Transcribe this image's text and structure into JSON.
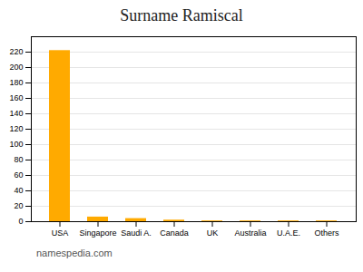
{
  "chart_data": {
    "type": "bar",
    "title": "Surname Ramiscal",
    "categories": [
      "USA",
      "Singapore",
      "Saudi A.",
      "Canada",
      "UK",
      "Australia",
      "U.A.E.",
      "Others"
    ],
    "values": [
      222,
      6,
      4,
      2,
      1,
      1,
      1,
      1
    ],
    "color": "#FFAA00",
    "ylim": [
      0,
      240
    ],
    "yticks": [
      0,
      20,
      40,
      60,
      80,
      100,
      120,
      140,
      160,
      180,
      200,
      220
    ],
    "grid": true,
    "annotations": [
      "namespedia.com"
    ]
  }
}
